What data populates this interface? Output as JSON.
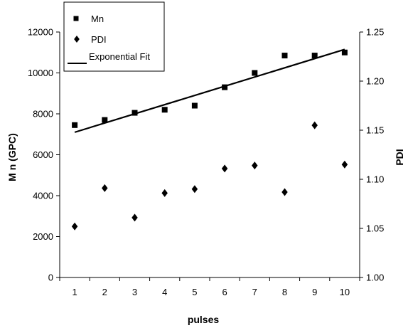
{
  "chart_data": {
    "type": "scatter",
    "xlabel": "pulses",
    "ylabel_left": "M n (GPC)",
    "ylabel_right": "PDI",
    "x_ticks": [
      "1",
      "2",
      "3",
      "4",
      "5",
      "6",
      "7",
      "8",
      "9",
      "10"
    ],
    "y_left_ticks": [
      "0",
      "2000",
      "4000",
      "6000",
      "8000",
      "10000",
      "12000"
    ],
    "y_right_ticks": [
      "1.00",
      "1.05",
      "1.10",
      "1.15",
      "1.20",
      "1.25"
    ],
    "y_left_range": [
      0,
      12000
    ],
    "y_right_range": [
      1.0,
      1.25
    ],
    "x_range": [
      0.5,
      10.5
    ],
    "grid": false,
    "legend_position": "top-left",
    "series": [
      {
        "name": "Mn",
        "axis": "left",
        "marker": "square",
        "x": [
          1,
          2,
          3,
          4,
          5,
          6,
          7,
          8,
          9,
          10
        ],
        "y": [
          7450,
          7700,
          8050,
          8200,
          8400,
          9300,
          10000,
          10850,
          10850,
          11000
        ]
      },
      {
        "name": "PDI",
        "axis": "right",
        "marker": "diamond",
        "x": [
          1,
          2,
          3,
          4,
          5,
          6,
          7,
          8,
          9,
          10
        ],
        "y": [
          1.052,
          1.091,
          1.061,
          1.086,
          1.09,
          1.111,
          1.114,
          1.087,
          1.155,
          1.115
        ]
      },
      {
        "name": "Exponential Fit",
        "axis": "left",
        "marker": "line",
        "x": [
          1,
          10
        ],
        "y": [
          7100,
          11150
        ]
      }
    ]
  }
}
